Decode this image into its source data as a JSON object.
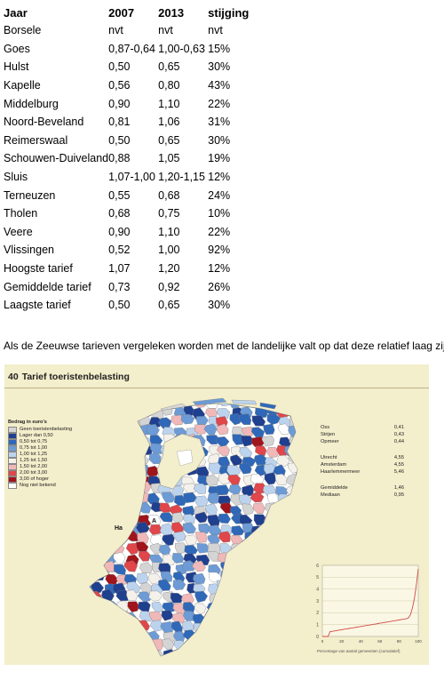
{
  "table": {
    "headers": [
      "Jaar",
      "2007",
      "2013",
      "stijging"
    ],
    "rows": [
      [
        "Borsele",
        "nvt",
        "nvt",
        "nvt"
      ],
      [
        "Goes",
        "0,87-0,64",
        "1,00-0,63",
        "15%"
      ],
      [
        "Hulst",
        "0,50",
        "0,65",
        "30%"
      ],
      [
        "Kapelle",
        "0,56",
        "0,80",
        "43%"
      ],
      [
        "Middelburg",
        "0,90",
        "1,10",
        "22%"
      ],
      [
        "Noord-Beveland",
        "0,81",
        "1,06",
        "31%"
      ],
      [
        "Reimerswaal",
        "0,50",
        "0,65",
        "30%"
      ],
      [
        "Schouwen-Duiveland",
        "0,88",
        "1,05",
        "19%"
      ],
      [
        "Sluis",
        "1,07-1,00",
        "1,20-1,15",
        "12%"
      ],
      [
        "Terneuzen",
        "0,55",
        "0,68",
        "24%"
      ],
      [
        "Tholen",
        "0,68",
        "0,75",
        "10%"
      ],
      [
        "Veere",
        "0,90",
        "1,10",
        "22%"
      ],
      [
        "Vlissingen",
        "0,52",
        "1,00",
        "92%"
      ],
      [
        "Hoogste tarief",
        "1,07",
        "1,20",
        "12%"
      ],
      [
        "Gemiddelde tarief",
        "0,73",
        "0,92",
        "26%"
      ],
      [
        "Laagste tarief",
        " 0,50",
        "0,65",
        "30%"
      ]
    ]
  },
  "intro_text": "Als de Zeeuwse tarieven vergeleken worden met de landelijke valt op dat deze relatief laag zijn.",
  "figure": {
    "number": "40",
    "title": "Tarief toeristenbelasting",
    "legend": {
      "heading": "Bedrag in euro's",
      "items": [
        {
          "label": "Geen toeristenbelasting",
          "color": "#d4d4d4"
        },
        {
          "label": "Lager dan 0,50",
          "color": "#1f3f8f"
        },
        {
          "label": "0,50 tot 0,75",
          "color": "#2f68b8"
        },
        {
          "label": "0,75 tot 1,00",
          "color": "#6c9bd6"
        },
        {
          "label": "1,00 tot 1,25",
          "color": "#bcd3ee"
        },
        {
          "label": "1,25 tot 1,50",
          "color": "#f4f1ea"
        },
        {
          "label": "1,50 tot 2,00",
          "color": "#f0b8b8"
        },
        {
          "label": "2,00 tot 3,00",
          "color": "#e0464a"
        },
        {
          "label": "3,00 of hoger",
          "color": "#a0141c"
        },
        {
          "label": "Nog niet bekend",
          "color": "#ffffff"
        }
      ]
    },
    "map_labels": [
      "Ha",
      "A"
    ],
    "stats": {
      "group1": [
        [
          "Oss",
          "0,41"
        ],
        [
          "Strijen",
          "0,43"
        ],
        [
          "Opmeer",
          "0,44"
        ]
      ],
      "group2": [
        [
          "Utrecht",
          "4,55"
        ],
        [
          "Amsterdam",
          "4,55"
        ],
        [
          "Haarlemmermeer",
          "5,46"
        ]
      ],
      "group3": [
        [
          "Gemiddelde",
          "1,46"
        ],
        [
          "Mediaan",
          "0,95"
        ]
      ]
    },
    "curve": {
      "y_ticks": [
        "6",
        "5",
        "4",
        "3",
        "2",
        "1",
        "0"
      ],
      "x_ticks": [
        "0",
        "20",
        "40",
        "60",
        "80",
        "100"
      ],
      "caption": "Percentage van aantal gemeenten (cumulatief)"
    }
  }
}
